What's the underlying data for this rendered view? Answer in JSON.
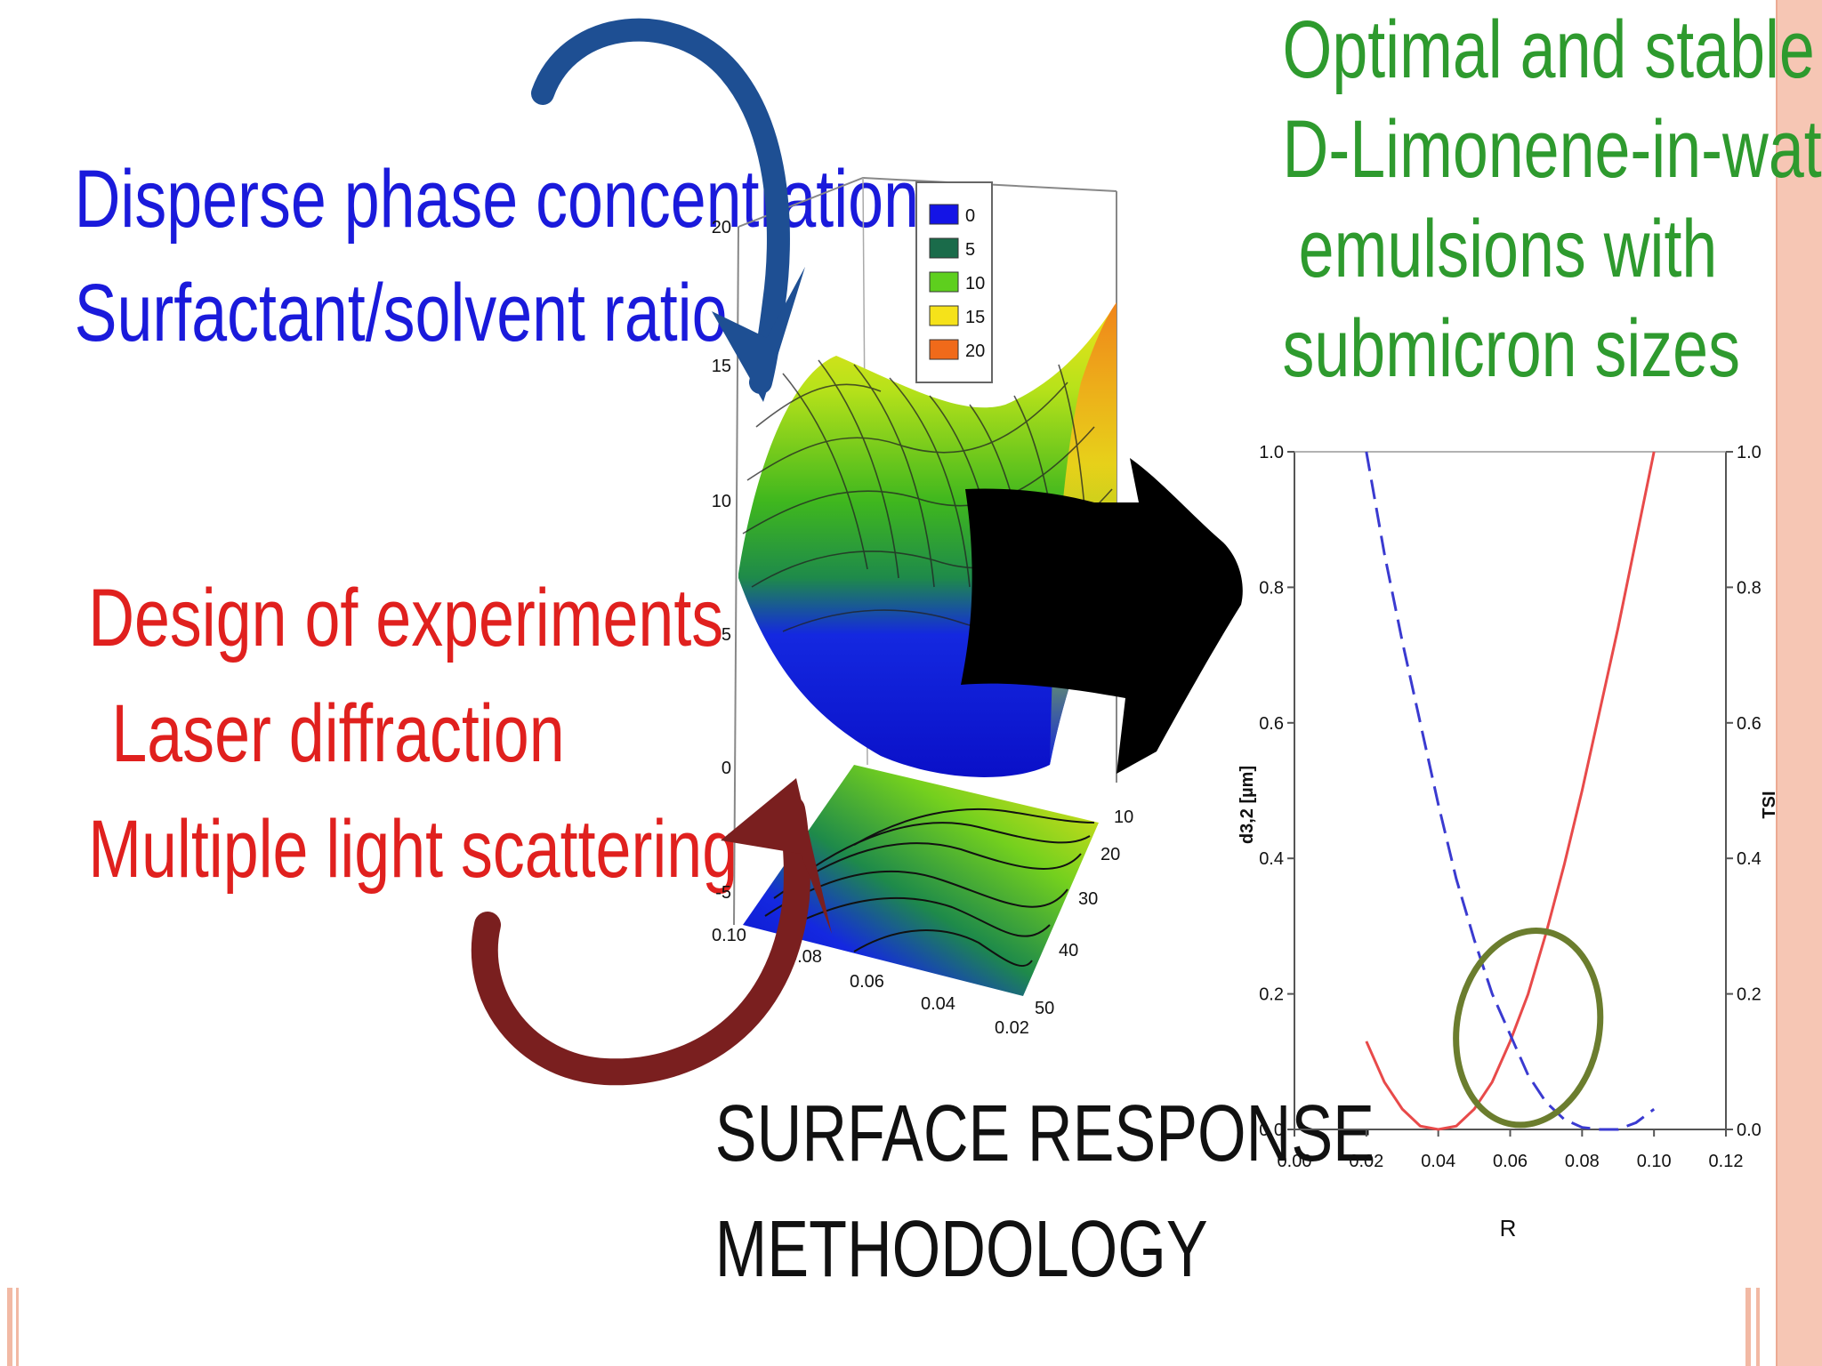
{
  "left_text": {
    "factors": [
      "Disperse phase concentration",
      "Surfactant/solvent ratio"
    ],
    "methods": [
      "Design of experiments",
      "Laser diffraction",
      "Multiple light scattering"
    ]
  },
  "right_text": {
    "title_lines": [
      "Optimal and stable",
      "D-Limonene-in-water",
      "emulsions with",
      "submicron sizes"
    ]
  },
  "center_text": {
    "label_lines": [
      "SURFACE RESPONSE",
      "METHODOLOGY"
    ]
  },
  "colors": {
    "factors": "#1a1adb",
    "methods": "#e0201e",
    "title": "#2e9a2e",
    "blue_arrow": "#1e4f93",
    "red_arrow": "#7a1f1f",
    "big_arrow": "#000000",
    "stripe": "#f6c6b4",
    "highlight_circle": "#6b7d2e"
  },
  "surface_plot": {
    "z_ticks": [
      "-5",
      "0",
      "5",
      "10",
      "15",
      "20"
    ],
    "x_ticks": [
      "0.10",
      "0.08",
      "0.06",
      "0.04",
      "0.02"
    ],
    "y_ticks": [
      "10",
      "20",
      "30",
      "40",
      "50"
    ],
    "legend": [
      {
        "label": "0",
        "color": "#1414e6"
      },
      {
        "label": "5",
        "color": "#1a6b4a"
      },
      {
        "label": "10",
        "color": "#5ecf1e"
      },
      {
        "label": "15",
        "color": "#f5e21a"
      },
      {
        "label": "20",
        "color": "#f06a1a"
      }
    ]
  },
  "chart_data": {
    "type": "line",
    "xlabel": "R",
    "ylabel": "d3,2 [µm]",
    "y2label": "TSI",
    "xlim": [
      0.0,
      0.12
    ],
    "ylim": [
      0.0,
      1.0
    ],
    "y2lim": [
      0.0,
      1.0
    ],
    "x_ticks": [
      "0.00",
      "0.02",
      "0.04",
      "0.06",
      "0.08",
      "0.10",
      "0.12"
    ],
    "y_ticks": [
      "0.0",
      "0.2",
      "0.4",
      "0.6",
      "0.8",
      "1.0"
    ],
    "y2_ticks": [
      "0.0",
      "0.2",
      "0.4",
      "0.6",
      "0.8",
      "1.0"
    ],
    "series": [
      {
        "axis": "left",
        "color": "#e84a4a",
        "style": "solid",
        "x": [
          0.02,
          0.025,
          0.03,
          0.035,
          0.04,
          0.045,
          0.05,
          0.055,
          0.06,
          0.065,
          0.07,
          0.075,
          0.08,
          0.085,
          0.09,
          0.095,
          0.1
        ],
        "y": [
          0.13,
          0.07,
          0.03,
          0.005,
          0.0,
          0.005,
          0.03,
          0.07,
          0.13,
          0.2,
          0.29,
          0.39,
          0.5,
          0.62,
          0.74,
          0.87,
          1.0
        ]
      },
      {
        "axis": "right",
        "color": "#3a3ad0",
        "style": "dashed",
        "x": [
          0.02,
          0.025,
          0.03,
          0.035,
          0.04,
          0.045,
          0.05,
          0.055,
          0.06,
          0.065,
          0.07,
          0.075,
          0.08,
          0.085,
          0.09,
          0.095,
          0.1
        ],
        "y": [
          1.0,
          0.85,
          0.72,
          0.6,
          0.48,
          0.37,
          0.28,
          0.2,
          0.14,
          0.08,
          0.04,
          0.015,
          0.003,
          0.0,
          0.0,
          0.01,
          0.03
        ]
      }
    ],
    "annotation": {
      "shape": "circle",
      "cx": 0.065,
      "cy": 0.15
    }
  }
}
